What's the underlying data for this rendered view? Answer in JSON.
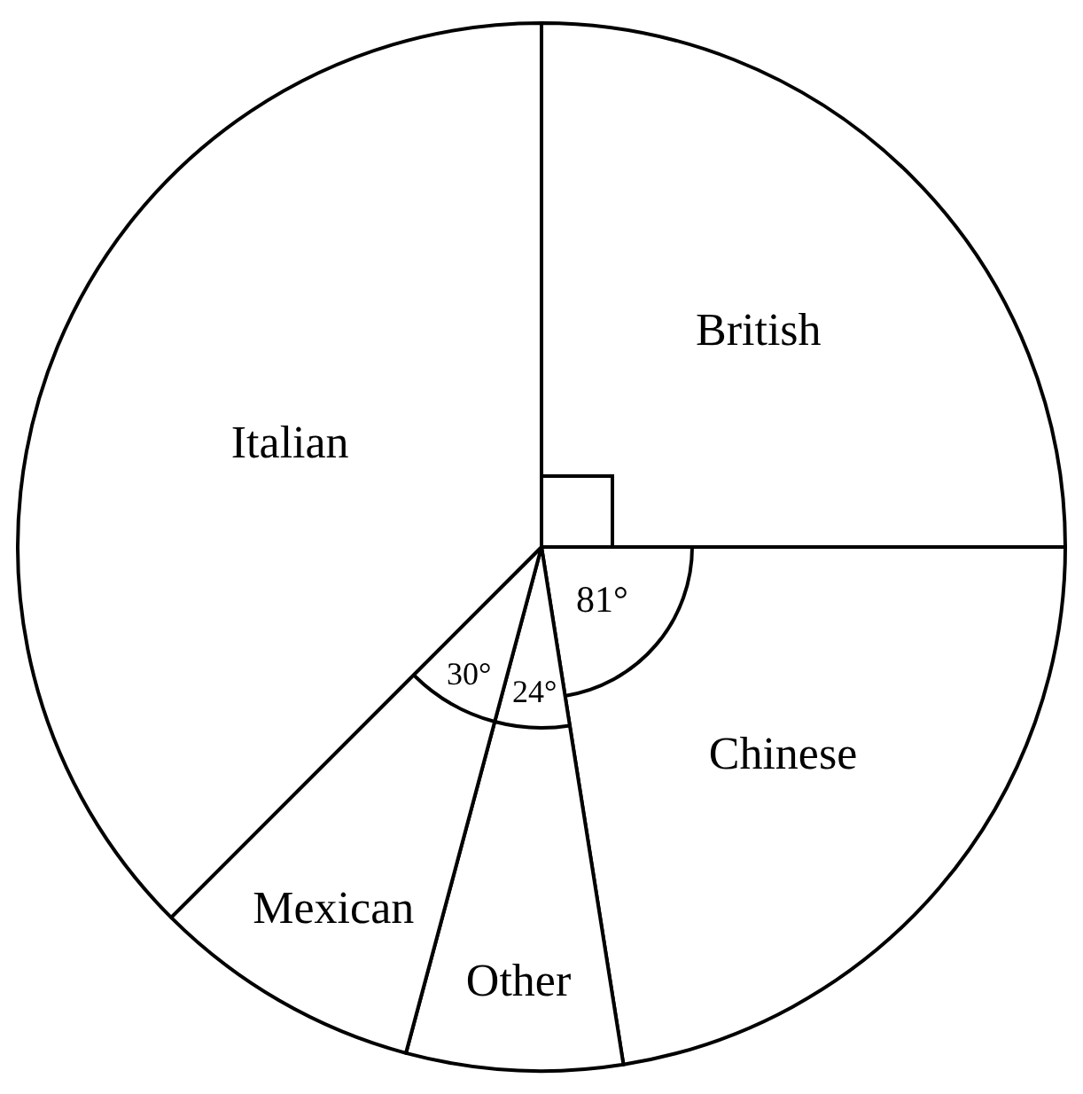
{
  "chart_data": {
    "type": "pie",
    "categories": [
      "British",
      "Chinese",
      "Other",
      "Mexican",
      "Italian"
    ],
    "values": [
      90,
      81,
      24,
      30,
      135
    ],
    "colors": [
      "#ffffff",
      "#ffffff",
      "#ffffff",
      "#ffffff",
      "#ffffff"
    ],
    "value_labels": [
      null,
      "81°",
      "24°",
      "30°",
      null
    ]
  }
}
